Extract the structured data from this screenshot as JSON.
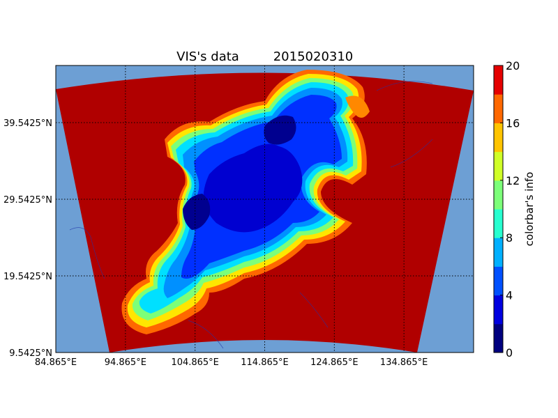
{
  "chart_data": {
    "type": "heatmap",
    "title_parts": [
      "VIS's data",
      "2015020310"
    ],
    "colorbar_label": "colorbar's info",
    "x_ticks": [
      "84.865°E",
      "94.865°E",
      "104.865°E",
      "114.865°E",
      "124.865°E",
      "134.865°E"
    ],
    "y_ticks": [
      "9.5425°N",
      "19.5425°N",
      "29.5425°N",
      "39.5425°N"
    ],
    "xlim": [
      84.865,
      144.865
    ],
    "ylim": [
      9.5425,
      47.0
    ],
    "grid": true,
    "colorbar": {
      "min": 0,
      "max": 20,
      "levels": [
        0,
        2,
        4,
        6,
        8,
        10,
        12,
        14,
        16,
        18,
        20
      ],
      "tick_labels": [
        "0",
        "4",
        "8",
        "12",
        "16",
        "20"
      ],
      "colors": [
        "#00007f",
        "#0000e0",
        "#0050ff",
        "#00b0ff",
        "#27ffd0",
        "#7cff79",
        "#d0ff27",
        "#ffc400",
        "#ff6800",
        "#e50000"
      ]
    },
    "colors": {
      "ocean": "#6d9fd4",
      "high_visibility": "#b00000",
      "grid": "#000000"
    }
  }
}
